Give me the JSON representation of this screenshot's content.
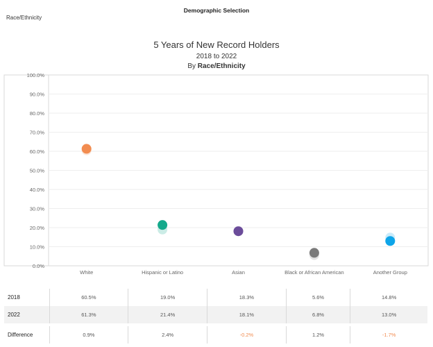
{
  "filter": {
    "title": "Demographic Selection",
    "label": "Race/Ethnicity"
  },
  "chart_data": {
    "type": "scatter",
    "title": "5 Years of New Record Holders",
    "subtitle": "2018 to 2022",
    "by_prefix": "By ",
    "by_value": "Race/Ethnicity",
    "categories": [
      "White",
      "Hispanic or Latino",
      "Asian",
      "Black or African American",
      "Another Group"
    ],
    "series": [
      {
        "name": "2018",
        "values": [
          60.5,
          19.0,
          18.3,
          5.6,
          14.8
        ]
      },
      {
        "name": "2022",
        "values": [
          61.3,
          21.4,
          18.1,
          6.8,
          13.0
        ]
      }
    ],
    "ylim": [
      0,
      100
    ],
    "yticks": [
      "0.0%",
      "10.0%",
      "20.0%",
      "30.0%",
      "40.0%",
      "50.0%",
      "60.0%",
      "70.0%",
      "80.0%",
      "90.0%",
      "100.0%"
    ],
    "colors": [
      "#f28c50",
      "#14a98b",
      "#6b4c9a",
      "#7a7a7a",
      "#0ea5e9"
    ],
    "grid": true
  },
  "table": {
    "rows": [
      {
        "label": "2018",
        "cells": [
          "60.5%",
          "19.0%",
          "18.3%",
          "5.6%",
          "14.8%"
        ]
      },
      {
        "label": "2022",
        "cells": [
          "61.3%",
          "21.4%",
          "18.1%",
          "6.8%",
          "13.0%"
        ]
      },
      {
        "label": "Difference",
        "cells": [
          "0.9%",
          "2.4%",
          "-0.2%",
          "1.2%",
          "-1.7%"
        ]
      }
    ]
  }
}
